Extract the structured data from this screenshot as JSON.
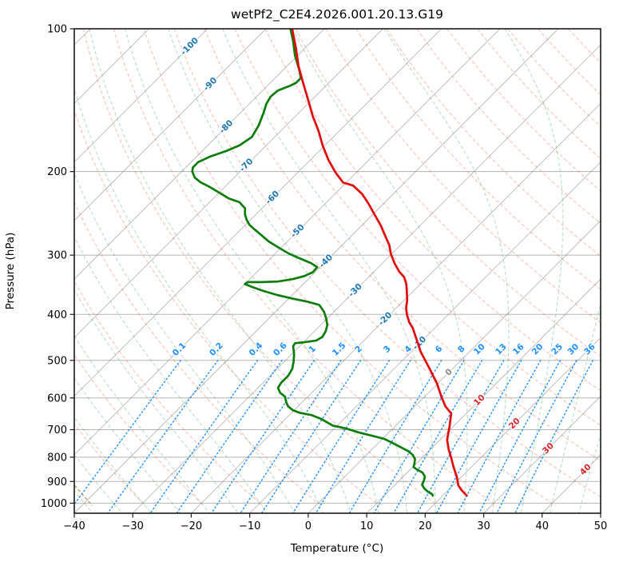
{
  "title": "wetPf2_C2E4.2026.001.20.13.G19",
  "axes": {
    "x_label": "Temperature (°C)",
    "y_label": "Pressure (hPa)",
    "x_ticks": [
      {
        "v": -40,
        "label": "−40"
      },
      {
        "v": -30,
        "label": "−30"
      },
      {
        "v": -20,
        "label": "−20"
      },
      {
        "v": -10,
        "label": "−10"
      },
      {
        "v": 0,
        "label": "0"
      },
      {
        "v": 10,
        "label": "10"
      },
      {
        "v": 20,
        "label": "20"
      },
      {
        "v": 30,
        "label": "30"
      },
      {
        "v": 40,
        "label": "40"
      },
      {
        "v": 50,
        "label": "50"
      }
    ],
    "y_ticks": [
      {
        "v": 100,
        "label": "100"
      },
      {
        "v": 200,
        "label": "200"
      },
      {
        "v": 300,
        "label": "300"
      },
      {
        "v": 400,
        "label": "400"
      },
      {
        "v": 500,
        "label": "500"
      },
      {
        "v": 600,
        "label": "600"
      },
      {
        "v": 700,
        "label": "700"
      },
      {
        "v": 800,
        "label": "800"
      },
      {
        "v": 900,
        "label": "900"
      },
      {
        "v": 1000,
        "label": "1000"
      }
    ],
    "x_range": [
      -40,
      50
    ],
    "p_range": [
      100,
      1050
    ]
  },
  "chart_data": {
    "type": "line",
    "title": "wetPf2_C2E4.2026.001.20.13.G19",
    "xlabel": "Temperature (°C)",
    "ylabel": "Pressure (hPa)",
    "x_range": [
      -40,
      50
    ],
    "pressure_range": [
      100,
      1050
    ],
    "grid": true,
    "skew_degrees": 45,
    "colors": {
      "temperature": "#e30b0b",
      "dewpoint": "#0b7d0b",
      "isotherm": "rgba(128,128,128,0.5)",
      "grid": "#b5b5b5",
      "dry_adiabat": "rgba(235,110,85,0.42)",
      "moist_adiabat": "rgba(80,168,90,0.38)",
      "mixing_line": "#1e90ff",
      "tan_adiabat": "rgba(165,130,60,0.8)",
      "label_neg": "#2077b4",
      "label_zero": "#8a8a8a",
      "label_pos": "#d62728"
    },
    "series": [
      {
        "name": "temperature",
        "points_p_t": [
          [
            100,
            -85.5
          ],
          [
            110,
            -81.5
          ],
          [
            120,
            -78.0
          ],
          [
            130,
            -74.4
          ],
          [
            141,
            -70.7
          ],
          [
            153,
            -67.0
          ],
          [
            164,
            -63.6
          ],
          [
            176,
            -60.4
          ],
          [
            189,
            -56.9
          ],
          [
            201,
            -53.5
          ],
          [
            211,
            -50.5
          ],
          [
            214,
            -48.3
          ],
          [
            223,
            -45.3
          ],
          [
            234,
            -42.5
          ],
          [
            245,
            -40.0
          ],
          [
            260,
            -36.7
          ],
          [
            275,
            -33.9
          ],
          [
            286,
            -31.9
          ],
          [
            298,
            -30.2
          ],
          [
            313,
            -27.8
          ],
          [
            325,
            -25.7
          ],
          [
            334,
            -23.9
          ],
          [
            345,
            -22.4
          ],
          [
            359,
            -20.9
          ],
          [
            373,
            -19.5
          ],
          [
            388,
            -18.3
          ],
          [
            400,
            -17.1
          ],
          [
            416,
            -15.3
          ],
          [
            427,
            -13.8
          ],
          [
            480,
            -8.3
          ],
          [
            518,
            -4.2
          ],
          [
            560,
            -0.1
          ],
          [
            598,
            3.0
          ],
          [
            625,
            5.2
          ],
          [
            647,
            7.4
          ],
          [
            688,
            9.3
          ],
          [
            735,
            11.2
          ],
          [
            770,
            13.1
          ],
          [
            801,
            14.9
          ],
          [
            836,
            16.8
          ],
          [
            882,
            19.3
          ],
          [
            917,
            20.9
          ],
          [
            939,
            22.3
          ],
          [
            964,
            24.1
          ]
        ]
      },
      {
        "name": "dewpoint",
        "points_p_t": [
          [
            100,
            -85.8
          ],
          [
            106,
            -83.3
          ],
          [
            114,
            -80.4
          ],
          [
            122,
            -77.3
          ],
          [
            127,
            -75.6
          ],
          [
            130,
            -75.6
          ],
          [
            132,
            -76.2
          ],
          [
            135,
            -77.4
          ],
          [
            139,
            -77.6
          ],
          [
            144,
            -77.1
          ],
          [
            150,
            -76.1
          ],
          [
            160,
            -74.7
          ],
          [
            169,
            -73.9
          ],
          [
            176,
            -74.6
          ],
          [
            181,
            -75.9
          ],
          [
            186,
            -77.7
          ],
          [
            191,
            -78.8
          ],
          [
            196,
            -78.8
          ],
          [
            200,
            -78.2
          ],
          [
            206,
            -76.7
          ],
          [
            211,
            -74.8
          ],
          [
            215,
            -72.8
          ],
          [
            221,
            -70.2
          ],
          [
            228,
            -67.3
          ],
          [
            232,
            -64.9
          ],
          [
            239,
            -62.9
          ],
          [
            246,
            -61.9
          ],
          [
            253,
            -60.6
          ],
          [
            259,
            -59.3
          ],
          [
            265,
            -57.6
          ],
          [
            272,
            -55.6
          ],
          [
            281,
            -53.1
          ],
          [
            289,
            -50.5
          ],
          [
            298,
            -47.6
          ],
          [
            305,
            -44.9
          ],
          [
            312,
            -42.2
          ],
          [
            318,
            -40.5
          ],
          [
            326,
            -40.4
          ],
          [
            332,
            -41.2
          ],
          [
            337,
            -42.6
          ],
          [
            341,
            -44.8
          ],
          [
            342,
            -47.4
          ],
          [
            342,
            -49.8
          ],
          [
            345,
            -50.0
          ],
          [
            350,
            -48.3
          ],
          [
            357,
            -45.6
          ],
          [
            364,
            -42.6
          ],
          [
            370,
            -39.6
          ],
          [
            376,
            -36.3
          ],
          [
            382,
            -33.7
          ],
          [
            395,
            -31.7
          ],
          [
            408,
            -30.2
          ],
          [
            421,
            -28.9
          ],
          [
            434,
            -28.1
          ],
          [
            446,
            -27.7
          ],
          [
            454,
            -28.1
          ],
          [
            458,
            -30.0
          ],
          [
            460,
            -31.3
          ],
          [
            467,
            -31.1
          ],
          [
            485,
            -29.6
          ],
          [
            503,
            -28.4
          ],
          [
            521,
            -27.4
          ],
          [
            539,
            -26.9
          ],
          [
            558,
            -26.9
          ],
          [
            571,
            -26.6
          ],
          [
            585,
            -25.4
          ],
          [
            596,
            -23.9
          ],
          [
            613,
            -22.7
          ],
          [
            625,
            -21.7
          ],
          [
            637,
            -20.2
          ],
          [
            645,
            -18.6
          ],
          [
            652,
            -16.2
          ],
          [
            665,
            -13.8
          ],
          [
            686,
            -10.8
          ],
          [
            696,
            -8.0
          ],
          [
            710,
            -5.0
          ],
          [
            721,
            -2.3
          ],
          [
            732,
            0.3
          ],
          [
            747,
            2.5
          ],
          [
            764,
            4.8
          ],
          [
            776,
            6.4
          ],
          [
            791,
            7.9
          ],
          [
            807,
            9.0
          ],
          [
            826,
            9.7
          ],
          [
            839,
            10.1
          ],
          [
            849,
            11.1
          ],
          [
            862,
            12.6
          ],
          [
            879,
            13.7
          ],
          [
            896,
            14.2
          ],
          [
            914,
            14.6
          ],
          [
            931,
            15.6
          ],
          [
            946,
            16.8
          ],
          [
            957,
            17.9
          ],
          [
            964,
            18.3
          ]
        ]
      }
    ],
    "isotherms": {
      "t_min": -150,
      "t_max": 50,
      "step": 10
    },
    "isotherm_labels": [
      {
        "t": -100,
        "label": "-100",
        "p": 109
      },
      {
        "t": -90,
        "label": "-90",
        "p": 131
      },
      {
        "t": -80,
        "label": "-80",
        "p": 161
      },
      {
        "t": -70,
        "label": "-70",
        "p": 194
      },
      {
        "t": -60,
        "label": "-60",
        "p": 227
      },
      {
        "t": -50,
        "label": "-50",
        "p": 267
      },
      {
        "t": -40,
        "label": "-40",
        "p": 309
      },
      {
        "t": -30,
        "label": "-30",
        "p": 356
      },
      {
        "t": -20,
        "label": "-20",
        "p": 409
      },
      {
        "t": -10,
        "label": "-10",
        "p": 460
      },
      {
        "t": 0,
        "label": "0",
        "p": 530
      },
      {
        "t": 10,
        "label": "10",
        "p": 607
      },
      {
        "t": 20,
        "label": "20",
        "p": 680
      },
      {
        "t": 30,
        "label": "30",
        "p": 767
      },
      {
        "t": 40,
        "label": "40",
        "p": 850
      }
    ],
    "dry_adiabats": {
      "theta_start": -30,
      "theta_end": 200,
      "step": 10
    },
    "special_tan_adiabat_theta": -39,
    "moist_adiabats": {
      "t_start": -40,
      "t_end": 50,
      "step": 5
    },
    "mixing_lines": {
      "values": [
        0.1,
        0.2,
        0.4,
        0.6,
        1,
        1.5,
        2,
        3,
        4,
        6,
        8,
        10,
        13,
        16,
        20,
        25,
        30,
        36
      ],
      "labels": [
        "0.1",
        "0.2",
        "0.4",
        "0.6",
        "1",
        "1.5",
        "2",
        "3",
        "4",
        "6",
        "8",
        "10",
        "13",
        "16",
        "20",
        "25",
        "30",
        "36"
      ],
      "p_top": 500,
      "p_bottom": 1050,
      "label_pressure": 478
    }
  }
}
